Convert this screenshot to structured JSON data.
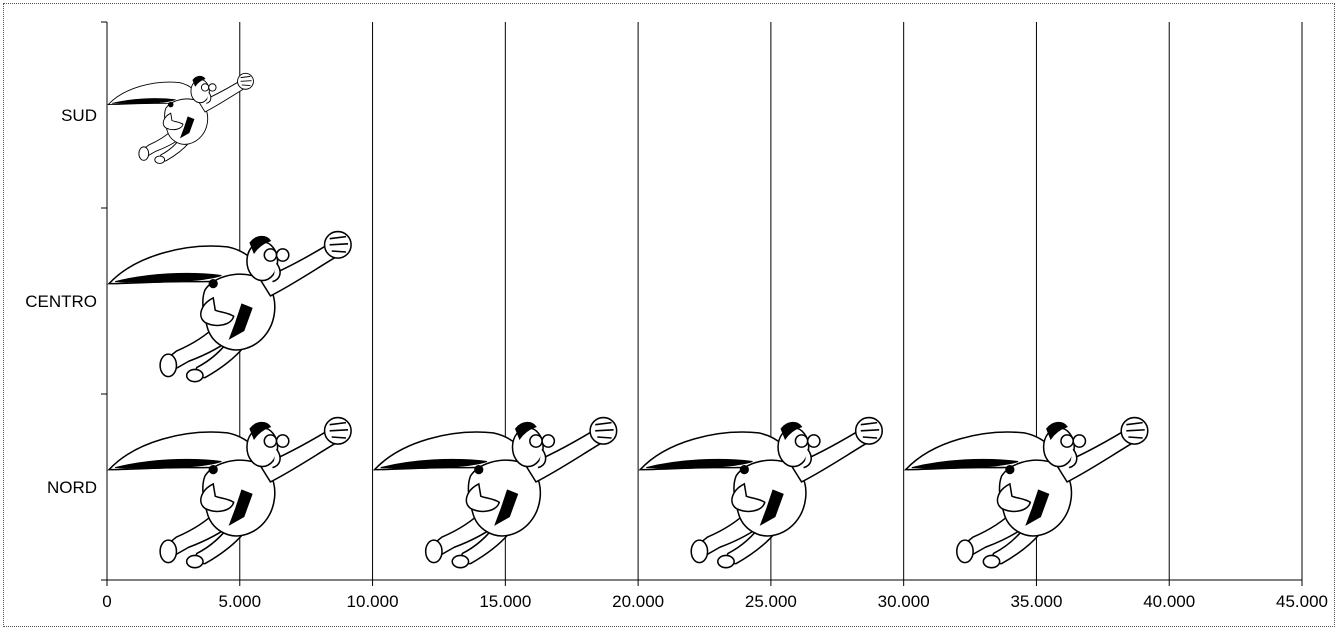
{
  "chart_data": {
    "type": "bar",
    "orientation": "horizontal",
    "pictograph": true,
    "symbol_unit": 10000,
    "symbol_icon": "flying-superhero-icon",
    "categories": [
      "SUD",
      "CENTRO",
      "NORD"
    ],
    "values": [
      6000,
      10000,
      40000
    ],
    "title": "",
    "xlabel": "",
    "ylabel": "",
    "xlim": [
      0,
      45000
    ],
    "xticks": [
      0,
      5000,
      10000,
      15000,
      20000,
      25000,
      30000,
      35000,
      40000,
      45000
    ],
    "xtick_labels": [
      "0",
      "5.000",
      "10.000",
      "15.000",
      "20.000",
      "25.000",
      "30.000",
      "35.000",
      "40.000",
      "45.000"
    ],
    "grid": "vertical",
    "legend": "none"
  }
}
